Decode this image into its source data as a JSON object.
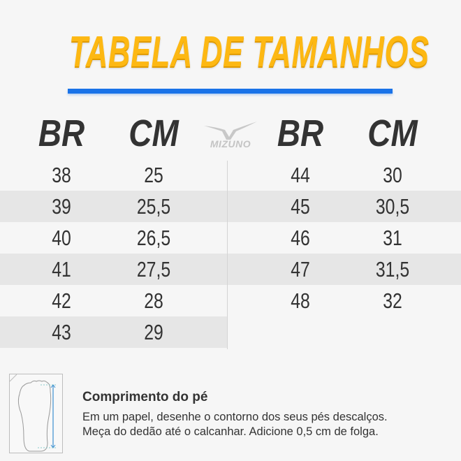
{
  "title": "TABELA DE TAMANHOS",
  "accent_color": "#1a73e8",
  "title_color": "#fdb813",
  "brand_logo": {
    "text": "MIZUNO",
    "icon": "mizuno-runbird-logo"
  },
  "headers": {
    "left_br": "BR",
    "left_cm": "CM",
    "right_br": "BR",
    "right_cm": "CM"
  },
  "left_table": [
    {
      "br": "38",
      "cm": "25"
    },
    {
      "br": "39",
      "cm": "25,5"
    },
    {
      "br": "40",
      "cm": "26,5"
    },
    {
      "br": "41",
      "cm": "27,5"
    },
    {
      "br": "42",
      "cm": "28"
    },
    {
      "br": "43",
      "cm": "29"
    }
  ],
  "right_table": [
    {
      "br": "44",
      "cm": "30"
    },
    {
      "br": "45",
      "cm": "30,5"
    },
    {
      "br": "46",
      "cm": "31"
    },
    {
      "br": "47",
      "cm": "31,5"
    },
    {
      "br": "48",
      "cm": "32"
    }
  ],
  "info": {
    "title": "Comprimento do pé",
    "line1": "Em um papel, desenhe o contorno dos seus pés descalços.",
    "line2": "Meça do dedão até o calcanhar. Adicione 0,5 cm de folga."
  }
}
